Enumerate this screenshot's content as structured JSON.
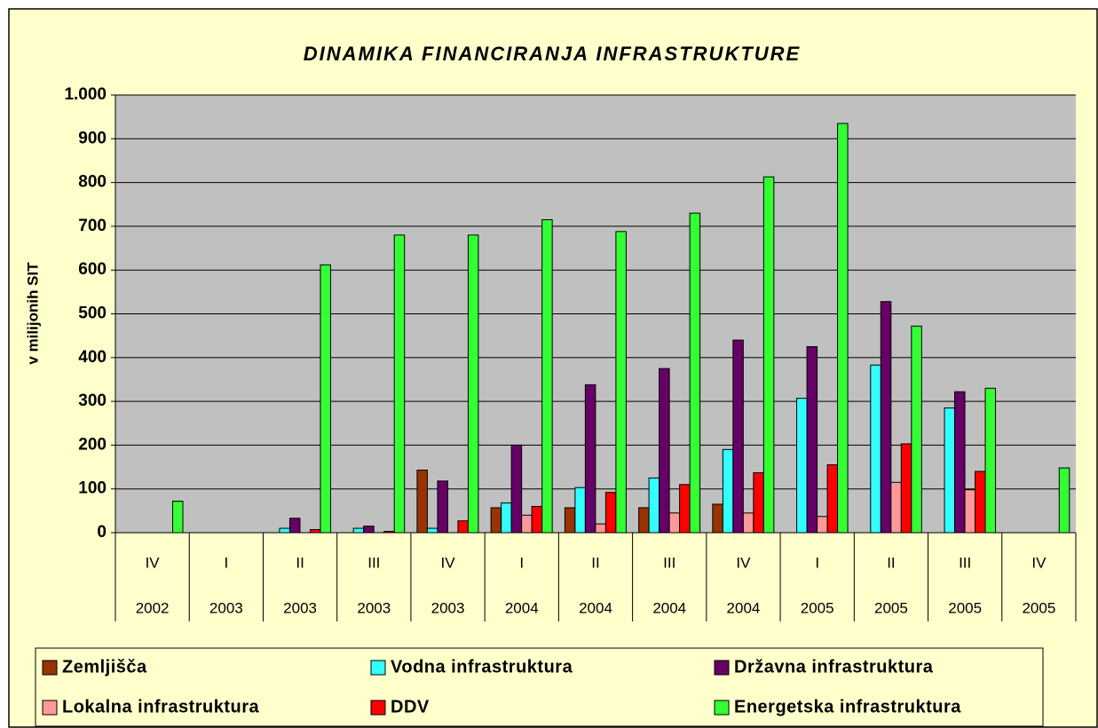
{
  "chart_data": {
    "type": "bar",
    "title": "DINAMIKA FINANCIRANJA INFRASTRUKTURE",
    "y_label": "v milijonih SIT",
    "categories": [
      "IV",
      "I",
      "II",
      "III",
      "IV",
      "I",
      "II",
      "III",
      "IV",
      "I",
      "II",
      "III",
      "IV"
    ],
    "years": [
      "2002",
      "2003",
      "2003",
      "2003",
      "2003",
      "2004",
      "2004",
      "2004",
      "2004",
      "2005",
      "2005",
      "2005",
      "2005"
    ],
    "series": [
      {
        "name": "Zemljišča",
        "color": "#993300",
        "values": [
          0,
          0,
          0,
          0,
          143,
          57,
          57,
          57,
          65,
          0,
          0,
          0,
          0
        ]
      },
      {
        "name": "Vodna infrastruktura",
        "color": "#33ffff",
        "values": [
          0,
          0,
          10,
          10,
          10,
          68,
          103,
          125,
          190,
          307,
          383,
          285,
          0
        ]
      },
      {
        "name": "Državna infrastruktura",
        "color": "#660066",
        "values": [
          0,
          0,
          33,
          15,
          118,
          200,
          338,
          375,
          440,
          425,
          528,
          322,
          0
        ]
      },
      {
        "name": "Lokalna infrastruktura",
        "color": "#ff9999",
        "values": [
          0,
          0,
          0,
          0,
          0,
          40,
          20,
          45,
          45,
          37,
          115,
          98,
          0
        ]
      },
      {
        "name": "DDV",
        "color": "#ff0000",
        "values": [
          0,
          0,
          7,
          3,
          27,
          60,
          92,
          110,
          137,
          155,
          203,
          140,
          0
        ]
      },
      {
        "name": "Energetska infrastruktura",
        "color": "#33ff33",
        "values": [
          72,
          0,
          612,
          680,
          680,
          715,
          688,
          730,
          813,
          935,
          472,
          330,
          148
        ]
      }
    ],
    "ylim": [
      0,
      1000
    ],
    "yticks": [
      0,
      100,
      200,
      300,
      400,
      500,
      600,
      700,
      800,
      900,
      {
        "value": 1000,
        "label": "1.000"
      }
    ],
    "grid": true
  }
}
